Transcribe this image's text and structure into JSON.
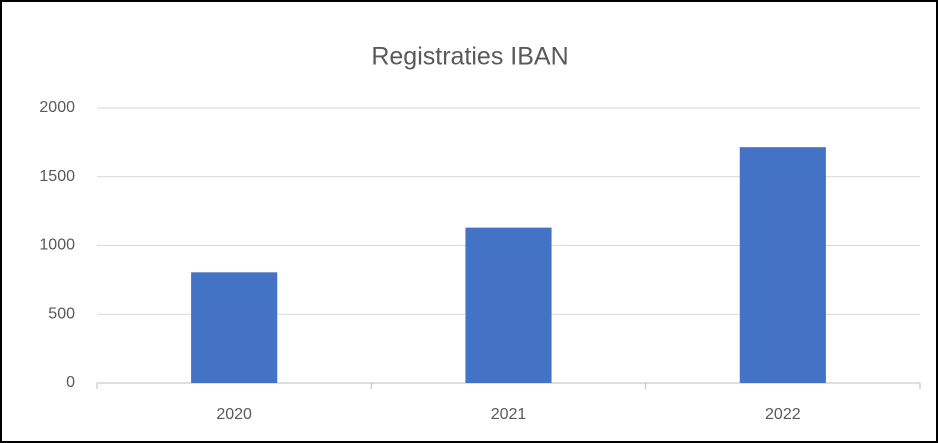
{
  "chart_data": {
    "type": "bar",
    "title": "Registraties IBAN",
    "categories": [
      "2020",
      "2021",
      "2022"
    ],
    "values": [
      805,
      1130,
      1715
    ],
    "color": "#4472c4",
    "ylim": [
      0,
      2000
    ],
    "yticks": [
      0,
      500,
      1000,
      1500,
      2000
    ],
    "grid": true
  }
}
